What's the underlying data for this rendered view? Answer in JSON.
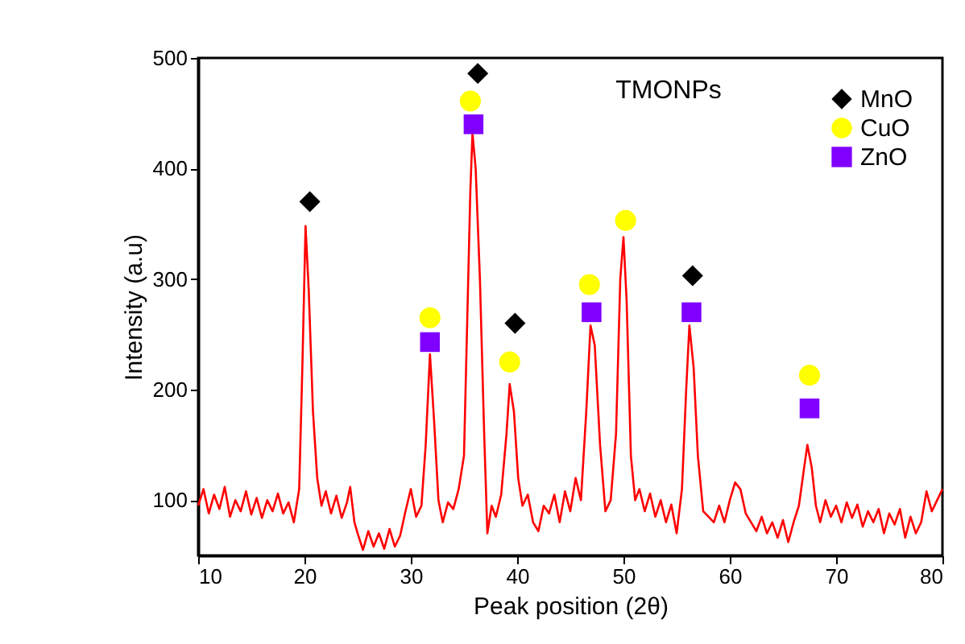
{
  "chart_data": {
    "type": "line",
    "xlabel": "Peak position (2θ)",
    "ylabel": "Intensity (a.u)",
    "annotations": [
      "TMONPs"
    ],
    "xlim": [
      10,
      80
    ],
    "xticks": [
      10,
      20,
      30,
      40,
      50,
      60,
      70,
      80
    ],
    "ylim": [
      50,
      500
    ],
    "yticks": [
      100,
      200,
      300,
      400,
      500
    ],
    "legend": "top right",
    "series": [
      {
        "color": "#ff0000",
        "x": [
          10,
          10.5,
          11,
          11.5,
          12,
          12.5,
          13,
          13.5,
          14,
          14.5,
          15,
          15.5,
          16,
          16.5,
          17,
          17.5,
          18,
          18.5,
          19,
          19.5,
          19.8,
          20.1,
          20.4,
          20.8,
          21.2,
          21.6,
          22,
          22.5,
          23,
          23.5,
          24,
          24.3,
          24.7,
          25,
          25.5,
          26,
          26.5,
          27,
          27.5,
          28,
          28.5,
          29,
          29.5,
          30,
          30.5,
          31,
          31.4,
          31.8,
          32.2,
          32.6,
          33,
          33.5,
          34,
          34.5,
          35,
          35.3,
          35.6,
          35.8,
          36.1,
          36.5,
          36.9,
          37.2,
          37.6,
          38,
          38.5,
          39,
          39.3,
          39.7,
          40.1,
          40.5,
          41,
          41.5,
          42,
          42.5,
          43,
          43.5,
          44,
          44.5,
          45,
          45.5,
          46,
          46.5,
          46.9,
          47.3,
          47.8,
          48.3,
          48.8,
          49.3,
          49.7,
          50,
          50.3,
          50.7,
          51.1,
          51.5,
          52,
          52.5,
          53,
          53.5,
          54,
          54.5,
          55,
          55.5,
          55.9,
          56.2,
          56.6,
          57,
          57.5,
          58,
          58.5,
          59,
          59.5,
          60,
          60.5,
          61,
          61.5,
          62,
          62.5,
          63,
          63.5,
          64,
          64.5,
          65,
          65.5,
          66,
          66.5,
          67,
          67.3,
          67.7,
          68.1,
          68.5,
          69,
          69.5,
          70,
          70.5,
          71,
          71.5,
          72,
          72.5,
          73,
          73.5,
          74,
          74.5,
          75,
          75.5,
          76,
          76.5,
          77,
          77.5,
          78,
          78.5,
          79,
          79.5,
          80
        ],
        "values": [
          95,
          110,
          88,
          105,
          92,
          112,
          85,
          100,
          90,
          108,
          87,
          102,
          84,
          100,
          90,
          106,
          88,
          98,
          80,
          110,
          220,
          348,
          290,
          180,
          120,
          95,
          108,
          88,
          104,
          84,
          98,
          112,
          80,
          70,
          55,
          72,
          58,
          70,
          56,
          74,
          58,
          68,
          90,
          110,
          85,
          95,
          150,
          232,
          170,
          100,
          80,
          98,
          92,
          110,
          140,
          260,
          380,
          432,
          400,
          300,
          160,
          70,
          95,
          85,
          105,
          160,
          205,
          180,
          120,
          95,
          105,
          80,
          72,
          95,
          88,
          105,
          80,
          108,
          90,
          120,
          100,
          180,
          258,
          240,
          150,
          90,
          100,
          160,
          300,
          338,
          280,
          140,
          100,
          110,
          90,
          106,
          85,
          100,
          80,
          96,
          70,
          110,
          200,
          258,
          220,
          140,
          90,
          85,
          80,
          95,
          80,
          100,
          116,
          110,
          88,
          80,
          72,
          85,
          70,
          80,
          66,
          82,
          62,
          80,
          95,
          130,
          150,
          130,
          95,
          80,
          100,
          85,
          95,
          80,
          98,
          84,
          96,
          76,
          90,
          80,
          92,
          70,
          88,
          78,
          92,
          66,
          85,
          70,
          80,
          108,
          90,
          100,
          110
        ]
      },
      {
        "type": "scatter",
        "name": "MnO",
        "color": "#000000",
        "marker": "diamond",
        "x": [
          20.5,
          36.3,
          39.8,
          56.5
        ],
        "values": [
          370,
          486,
          260,
          303
        ]
      },
      {
        "type": "scatter",
        "name": "CuO",
        "color": "#ffff00",
        "marker": "circle",
        "x": [
          31.8,
          35.6,
          39.3,
          46.8,
          50.2,
          67.5
        ],
        "values": [
          265,
          461,
          225,
          295,
          353,
          213
        ]
      },
      {
        "type": "scatter",
        "name": "ZnO",
        "color": "#8000ff",
        "marker": "square",
        "x": [
          31.8,
          35.9,
          47.0,
          56.4,
          67.5
        ],
        "values": [
          243,
          440,
          270,
          270,
          183
        ]
      }
    ]
  }
}
